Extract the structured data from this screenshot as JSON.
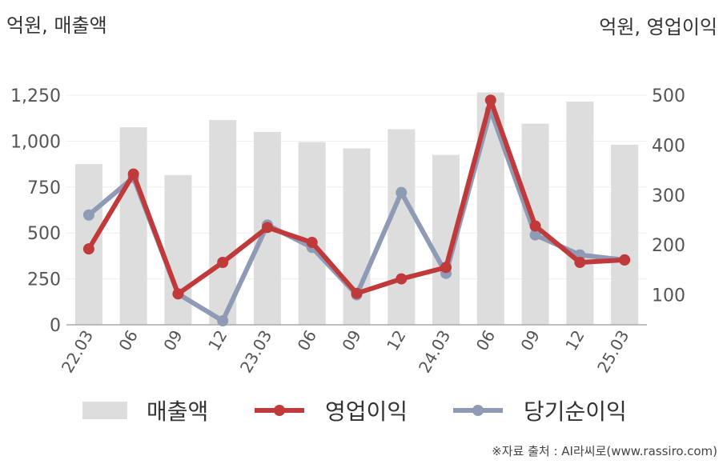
{
  "left_axis_unit": "억원, 매출액",
  "right_axis_unit": "억원, 영업이익",
  "source": "※자료 출처 : AI라씨로(www.rassiro.com)",
  "chart_data": {
    "type": "bar+line",
    "categories": [
      "22.03",
      "06",
      "09",
      "12",
      "23.03",
      "06",
      "09",
      "12",
      "24.03",
      "06",
      "09",
      "12",
      "25.03"
    ],
    "ylim_left": [
      0,
      1250
    ],
    "yticks_left": [
      0,
      250,
      500,
      750,
      1000,
      1250
    ],
    "ylim_right": [
      40,
      500
    ],
    "yticks_right": [
      100,
      200,
      300,
      400,
      500
    ],
    "grid": true,
    "legend_position": "bottom",
    "series": [
      {
        "name": "매출액",
        "type": "bar",
        "axis": "left",
        "color": "#dddddd",
        "values": [
          875,
          1075,
          815,
          1115,
          1050,
          995,
          960,
          1065,
          925,
          1265,
          1095,
          1215,
          980
        ]
      },
      {
        "name": "영업이익",
        "type": "line",
        "axis": "right",
        "color": "#c0393b",
        "values": [
          192,
          342,
          102,
          165,
          235,
          205,
          103,
          132,
          155,
          490,
          238,
          165,
          170
        ]
      },
      {
        "name": "당기순이익",
        "type": "line",
        "axis": "right",
        "color": "#8f9bb5",
        "values": [
          260,
          335,
          102,
          48,
          240,
          195,
          100,
          305,
          143,
          470,
          220,
          180,
          170
        ]
      }
    ]
  }
}
